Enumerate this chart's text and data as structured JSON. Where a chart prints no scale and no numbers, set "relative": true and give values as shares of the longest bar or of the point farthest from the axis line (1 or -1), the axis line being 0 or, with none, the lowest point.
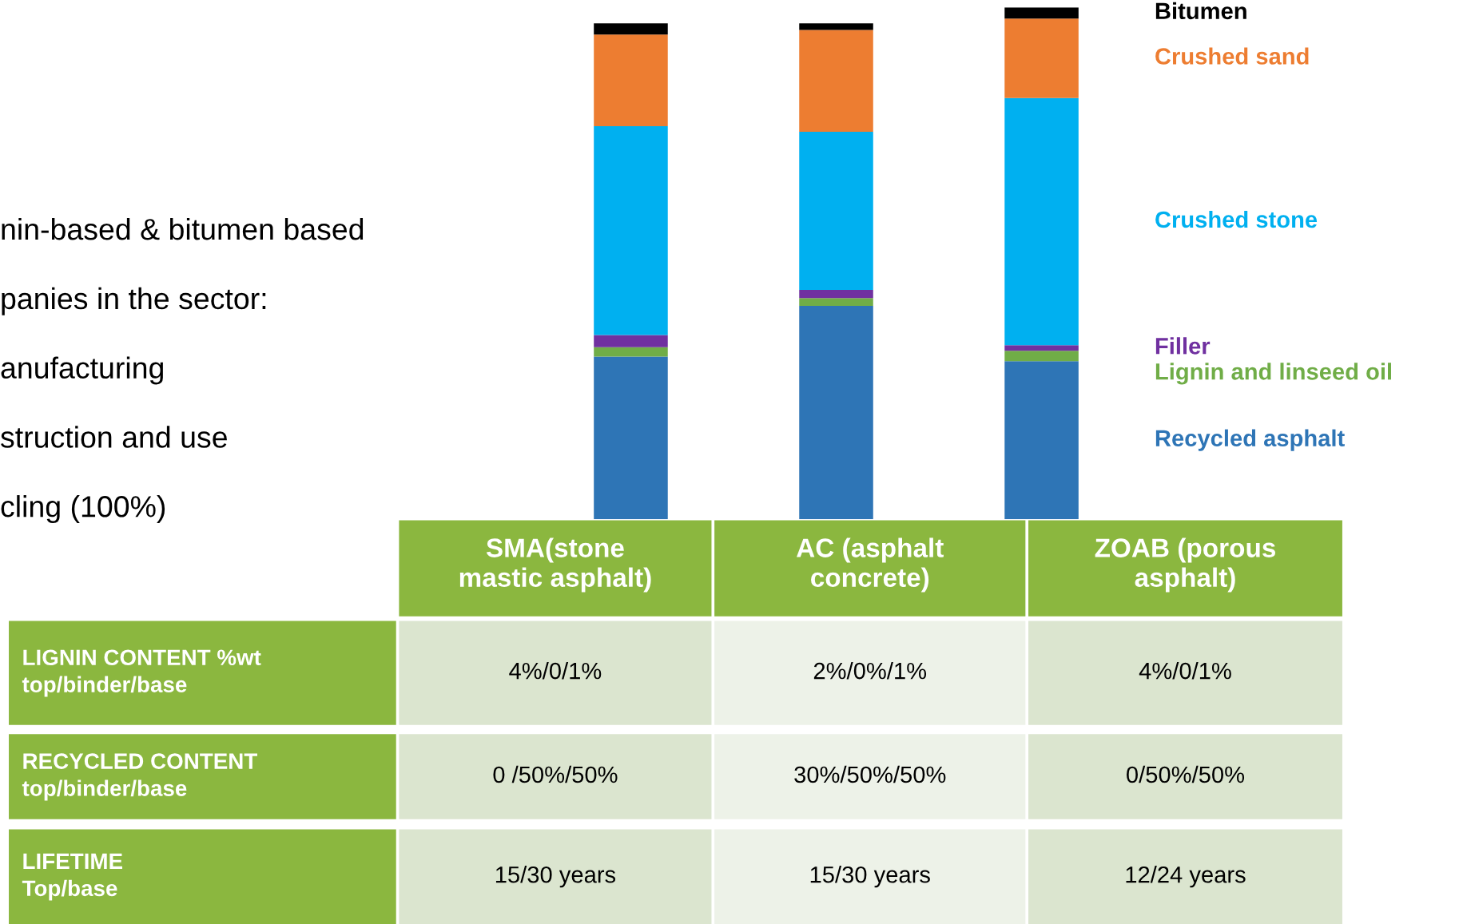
{
  "chart_data": {
    "type": "bar",
    "stacked": true,
    "relative": true,
    "categories": [
      "SMA(stone\nmastic asphalt)",
      "AC (asphalt\nconcrete)",
      "ZOAB (porous\nasphalt)"
    ],
    "series": [
      {
        "name": "Recycled asphalt",
        "color": "#2e75b6",
        "values": [
          0.318,
          0.417,
          0.309
        ]
      },
      {
        "name": "Lignin and linseed oil",
        "color": "#70ad47",
        "values": [
          0.018,
          0.015,
          0.02
        ]
      },
      {
        "name": "Filler",
        "color": "#7030a0",
        "values": [
          0.024,
          0.016,
          0.011
        ]
      },
      {
        "name": "Crushed stone",
        "color": "#00b0f0",
        "values": [
          0.408,
          0.309,
          0.483
        ]
      },
      {
        "name": "Crushed sand",
        "color": "#ed7d31",
        "values": [
          0.179,
          0.199,
          0.155
        ]
      },
      {
        "name": "Bitumen",
        "color": "#000000",
        "values": [
          0.022,
          0.013,
          0.022
        ]
      }
    ],
    "annotations": [
      "nin-based & bitumen based",
      "panies in the sector:",
      "anufacturing",
      "struction and use",
      "cling (100%)",
      "LIGNIN CONTENT %wt\ntop/binder/base",
      "4%/0/1%",
      "2%/0%/1%",
      "4%/0/1%",
      "RECYCLED CONTENT\ntop/binder/base",
      "0 /50%/50%",
      "30%/50%/50%",
      "0/50%/50%",
      "LIFETIME\nTop/base",
      "15/30 years",
      "15/30 years",
      "12/24 years"
    ]
  }
}
